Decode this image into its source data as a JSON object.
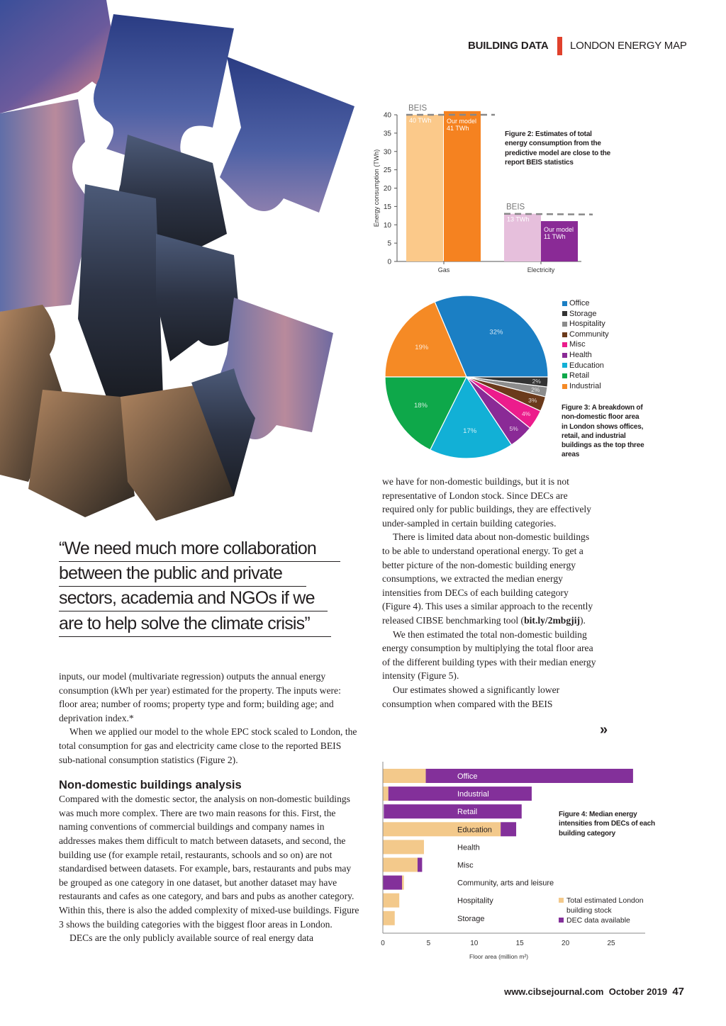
{
  "header": {
    "section": "BUILDING DATA",
    "subsection": "LONDON ENERGY MAP",
    "accent": "#e0412c"
  },
  "pull_quote": {
    "lines": [
      "“We need much more collaboration",
      "between the public and private",
      "sectors, academia and NGOs if we",
      "are to help solve the climate crisis”"
    ]
  },
  "left_column": {
    "para1": "inputs, our model (multivariate regression) outputs the annual energy consumption (kWh per year) estimated for the property. The inputs were: floor area; number of rooms; property type and form; building age; and deprivation index.*",
    "para2": "When we applied our model to the whole EPC stock scaled to London, the total consumption for gas and electricity came close to the reported BEIS sub-national consumption statistics (Figure 2).",
    "heading": "Non-domestic buildings analysis",
    "para3": "Compared with the domestic sector, the analysis on non-domestic buildings was much more complex. There are two main reasons for this. First, the naming conventions of commercial buildings and company names in addresses makes them difficult to match between datasets, and second, the building use (for example retail, restaurants, schools and so on) are not standardised between datasets. For example, bars, restaurants and pubs may be grouped as one category in one dataset, but another dataset may have restaurants and cafes as one category, and bars and pubs as another category. Within this, there is also the added complexity of mixed-use buildings. Figure 3 shows the building categories with the biggest floor areas in London.",
    "para4": "DECs are the only publicly available source of real energy data"
  },
  "right_column": {
    "para1": "we have for non-domestic buildings, but it is not representative of London stock. Since DECs are required only for public buildings, they are effectively under-sampled in certain building categories.",
    "para2_pre": "There is limited data about non-domestic buildings to be able to understand operational energy. To get a better picture of the non-domestic building energy consumptions, we extracted the median energy intensities from DECs of each building category (Figure 4). This uses a similar approach to the recently released CIBSE benchmarking tool (",
    "para2_link": "bit.ly/2mbgjij",
    "para2_post": ").",
    "para3": "We then estimated the total non-domestic building energy consumption by multiplying the total floor area of the different building types with their median energy intensity (Figure 5).",
    "para4": "Our estimates showed a significantly lower consumption when compared with the BEIS",
    "continue_icon": "»"
  },
  "footer": {
    "url": "www.cibsejournal.com",
    "date": "October 2019",
    "page": "47"
  },
  "chart_data": [
    {
      "type": "bar",
      "title": "Figure 2: Estimates of total energy consumption from the predictive model are close to the report BEIS statistics",
      "ylabel": "Energy consumption (TWh)",
      "xlabel": "",
      "ylim": [
        0,
        40
      ],
      "yticks": [
        0,
        5,
        10,
        15,
        20,
        25,
        30,
        35,
        40
      ],
      "categories": [
        "Gas",
        "Electricity"
      ],
      "bars": [
        {
          "category": "Gas",
          "value": 40,
          "label": "40 TWh",
          "color": "#fbc98a"
        },
        {
          "category": "Gas",
          "value": 41,
          "label": "Our model 41 TWh",
          "color": "#f58220"
        },
        {
          "category": "Electricity",
          "value": 13,
          "label": "13 TWh",
          "color": "#e6bfdc"
        },
        {
          "category": "Electricity",
          "value": 11,
          "label": "Our model 11 TWh",
          "color": "#8a2a96"
        }
      ],
      "reference_lines": [
        {
          "category": "Gas",
          "value": 40,
          "label": "BEIS"
        },
        {
          "category": "Electricity",
          "value": 13,
          "label": "BEIS"
        }
      ]
    },
    {
      "type": "pie",
      "title": "Figure 3: A breakdown of non-domestic floor area in London shows offices, retail, and industrial buildings as the top three areas",
      "legend_position": "right",
      "slices": [
        {
          "label": "Office",
          "value": 32,
          "text": "32%",
          "color": "#1b7fc4"
        },
        {
          "label": "Storage",
          "value": 2,
          "text": "2%",
          "color": "#333333"
        },
        {
          "label": "Hospitality",
          "value": 2,
          "text": "2%",
          "color": "#8c8c8c"
        },
        {
          "label": "Community",
          "value": 3,
          "text": "3%",
          "color": "#6b3a1b"
        },
        {
          "label": "Misc",
          "value": 4,
          "text": "4%",
          "color": "#ec1c8c"
        },
        {
          "label": "Health",
          "value": 5,
          "text": "5%",
          "color": "#8a2a96"
        },
        {
          "label": "Education",
          "value": 17,
          "text": "17%",
          "color": "#12b0d6"
        },
        {
          "label": "Retail",
          "value": 18,
          "text": "18%",
          "color": "#0ea84a"
        },
        {
          "label": "Industrial",
          "value": 19,
          "text": "19%",
          "color": "#f58a25"
        }
      ],
      "draw_order": [
        "Office",
        "Industrial",
        "Retail",
        "Education",
        "Health",
        "Misc",
        "Community",
        "Hospitality",
        "Storage"
      ]
    },
    {
      "type": "bar",
      "orientation": "horizontal",
      "title": "Figure 4: Median energy intensities from DECs of each building category",
      "xlabel": "Floor area (million m²)",
      "xlim": [
        0,
        27
      ],
      "xticks": [
        0,
        5,
        10,
        15,
        20,
        25
      ],
      "legend_position": "bottom-right",
      "series": [
        {
          "name": "Total estimated London building stock",
          "color": "#f3c98b"
        },
        {
          "name": "DEC data available",
          "color": "#83309a"
        }
      ],
      "rows": [
        {
          "label": "Office",
          "segments": [
            [
              0,
              0,
              4.7
            ],
            [
              1,
              4.7,
              27.4
            ]
          ],
          "dark": false
        },
        {
          "label": "Industrial",
          "segments": [
            [
              0,
              0,
              0.6
            ],
            [
              1,
              0.6,
              16.3
            ]
          ],
          "dark": false
        },
        {
          "label": "Retail",
          "segments": [
            [
              1,
              0.1,
              15.2
            ]
          ],
          "dark": false
        },
        {
          "label": "Education",
          "segments": [
            [
              0,
              0,
              12.9
            ],
            [
              1,
              12.9,
              14.6
            ]
          ],
          "dark": true
        },
        {
          "label": "Health",
          "segments": [
            [
              0,
              0,
              4.5
            ]
          ],
          "dark": true
        },
        {
          "label": "Misc",
          "segments": [
            [
              0,
              0,
              3.8
            ],
            [
              1,
              3.8,
              4.3
            ]
          ],
          "dark": true
        },
        {
          "label": "Community, arts and leisure",
          "segments": [
            [
              1,
              0,
              2.1
            ],
            [
              0,
              2.1,
              2.3
            ]
          ],
          "dark": true
        },
        {
          "label": "Hospitality",
          "segments": [
            [
              0,
              0,
              1.8
            ]
          ],
          "dark": true
        },
        {
          "label": "Storage",
          "segments": [
            [
              0,
              0,
              1.3
            ]
          ],
          "dark": true
        }
      ]
    }
  ]
}
